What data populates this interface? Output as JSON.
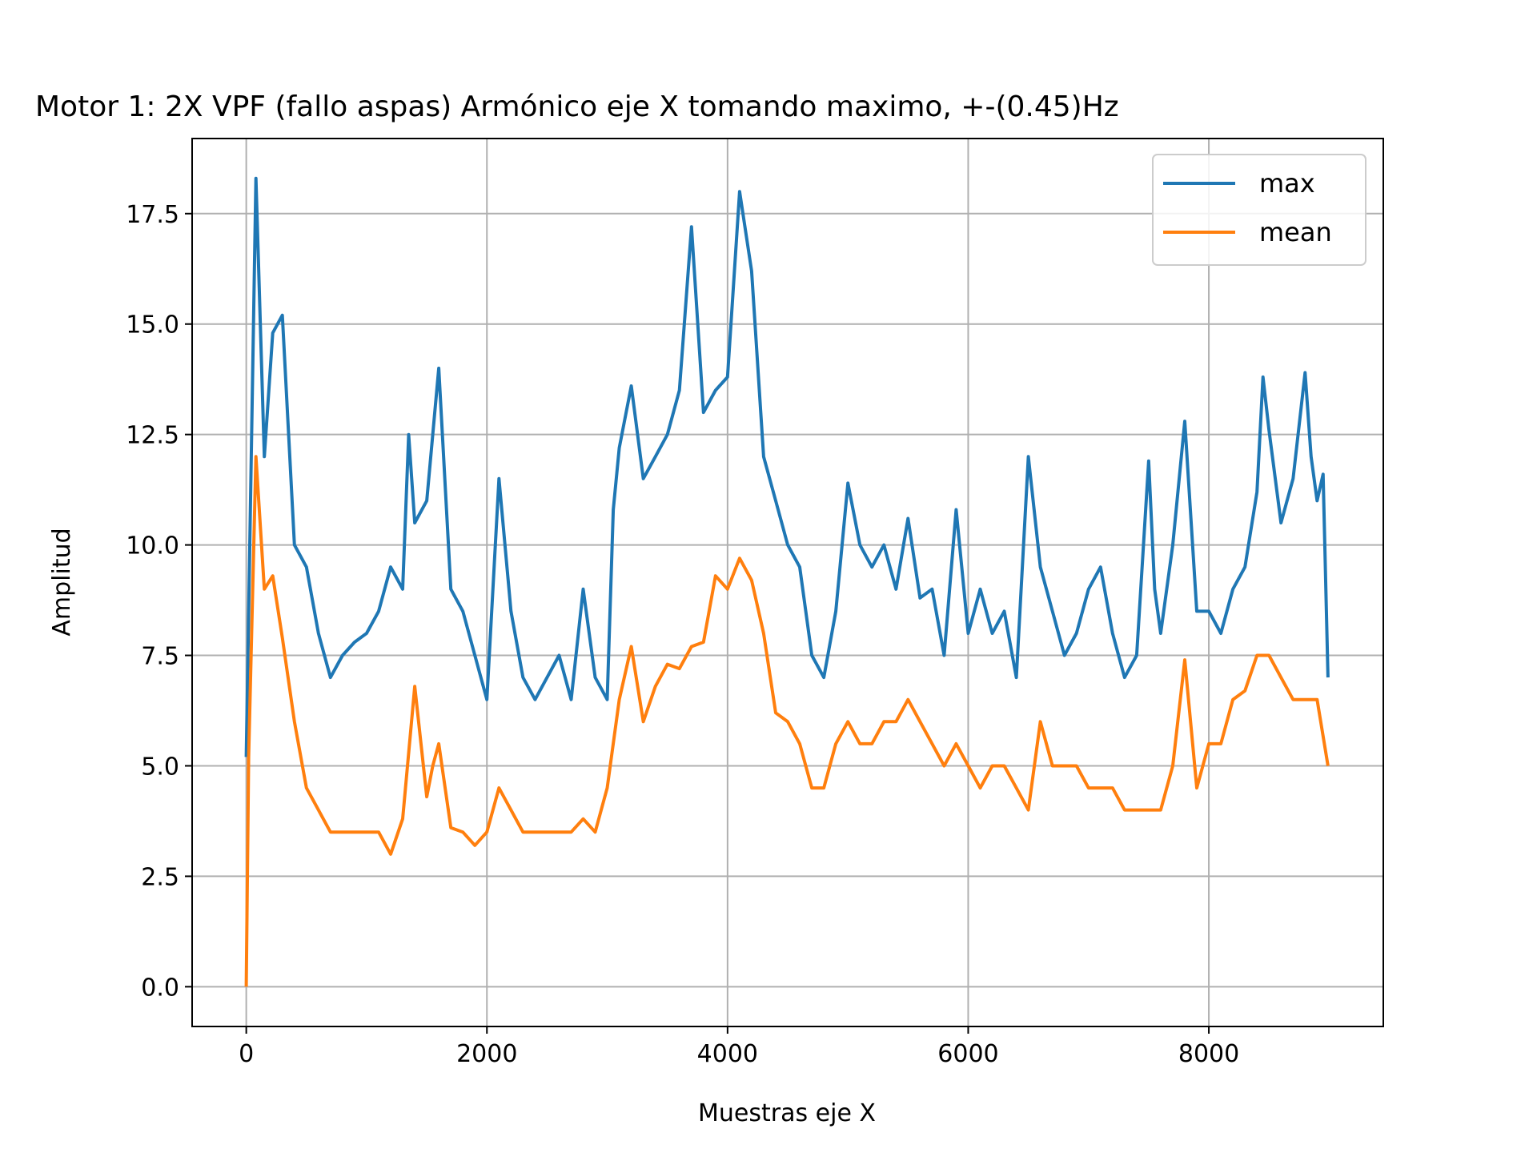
{
  "chart_data": {
    "type": "line",
    "title": "Motor 1: 2X VPF (fallo aspas) Armónico eje X tomando maximo, +-(0.45)Hz",
    "xlabel": "Muestras eje X",
    "ylabel": "Amplitud",
    "xlim": [
      -450,
      9450
    ],
    "ylim": [
      -0.9,
      19.2
    ],
    "xticks": [
      0,
      2000,
      4000,
      6000,
      8000
    ],
    "xtick_labels": [
      "0",
      "2000",
      "4000",
      "6000",
      "8000"
    ],
    "yticks": [
      0.0,
      2.5,
      5.0,
      7.5,
      10.0,
      12.5,
      15.0,
      17.5
    ],
    "ytick_labels": [
      "0.0",
      "2.5",
      "5.0",
      "7.5",
      "10.0",
      "12.5",
      "15.0",
      "17.5"
    ],
    "grid": true,
    "legend_position": "top-right",
    "series": [
      {
        "name": "max",
        "color": "#1f77b4",
        "x": [
          0,
          80,
          150,
          220,
          300,
          400,
          500,
          600,
          700,
          800,
          900,
          1000,
          1100,
          1200,
          1300,
          1350,
          1400,
          1500,
          1550,
          1600,
          1700,
          1800,
          1900,
          2000,
          2100,
          2200,
          2300,
          2400,
          2500,
          2600,
          2700,
          2800,
          2900,
          3000,
          3050,
          3100,
          3200,
          3300,
          3400,
          3500,
          3600,
          3700,
          3800,
          3900,
          4000,
          4100,
          4200,
          4300,
          4400,
          4500,
          4600,
          4700,
          4800,
          4900,
          5000,
          5100,
          5200,
          5300,
          5400,
          5500,
          5600,
          5700,
          5800,
          5900,
          6000,
          6100,
          6200,
          6300,
          6400,
          6500,
          6600,
          6700,
          6800,
          6900,
          7000,
          7100,
          7200,
          7300,
          7400,
          7500,
          7550,
          7600,
          7700,
          7800,
          7900,
          8000,
          8100,
          8200,
          8300,
          8400,
          8450,
          8500,
          8600,
          8700,
          8800,
          8850,
          8900,
          8950,
          8990
        ],
        "values": [
          5.2,
          18.3,
          12.0,
          14.8,
          15.2,
          10.0,
          9.5,
          8.0,
          7.0,
          7.5,
          7.8,
          8.0,
          8.5,
          9.5,
          9.0,
          12.5,
          10.5,
          11.0,
          12.5,
          14.0,
          9.0,
          8.5,
          7.5,
          6.5,
          11.5,
          8.5,
          7.0,
          6.5,
          7.0,
          7.5,
          6.5,
          9.0,
          7.0,
          6.5,
          10.8,
          12.2,
          13.6,
          11.5,
          12.0,
          12.5,
          13.5,
          17.2,
          13.0,
          13.5,
          13.8,
          18.0,
          16.2,
          12.0,
          11.0,
          10.0,
          9.5,
          7.5,
          7.0,
          8.5,
          11.4,
          10.0,
          9.5,
          10.0,
          9.0,
          10.6,
          8.8,
          9.0,
          7.5,
          10.8,
          8.0,
          9.0,
          8.0,
          8.5,
          7.0,
          12.0,
          9.5,
          8.5,
          7.5,
          8.0,
          9.0,
          9.5,
          8.0,
          7.0,
          7.5,
          11.9,
          9.0,
          8.0,
          10.0,
          12.8,
          8.5,
          8.5,
          8.0,
          9.0,
          9.5,
          11.2,
          13.8,
          12.6,
          10.5,
          11.5,
          13.9,
          12.0,
          11.0,
          11.6,
          7.0
        ]
      },
      {
        "name": "mean",
        "color": "#ff7f0e",
        "x": [
          0,
          20,
          80,
          150,
          220,
          300,
          400,
          500,
          600,
          700,
          800,
          900,
          1000,
          1100,
          1200,
          1300,
          1400,
          1500,
          1550,
          1600,
          1700,
          1800,
          1900,
          2000,
          2100,
          2200,
          2300,
          2400,
          2500,
          2600,
          2700,
          2800,
          2900,
          3000,
          3100,
          3200,
          3300,
          3400,
          3500,
          3600,
          3700,
          3800,
          3900,
          4000,
          4100,
          4200,
          4300,
          4400,
          4500,
          4600,
          4700,
          4800,
          4900,
          5000,
          5100,
          5200,
          5300,
          5400,
          5500,
          5600,
          5700,
          5800,
          5900,
          6000,
          6100,
          6200,
          6300,
          6400,
          6500,
          6600,
          6700,
          6800,
          6900,
          7000,
          7100,
          7200,
          7300,
          7400,
          7500,
          7600,
          7700,
          7800,
          7900,
          8000,
          8100,
          8200,
          8300,
          8400,
          8500,
          8600,
          8700,
          8800,
          8900,
          8990
        ],
        "values": [
          0.0,
          5.2,
          12.0,
          9.0,
          9.3,
          7.9,
          6.0,
          4.5,
          4.0,
          3.5,
          3.5,
          3.5,
          3.5,
          3.5,
          3.0,
          3.8,
          6.8,
          4.3,
          5.0,
          5.5,
          3.6,
          3.5,
          3.2,
          3.5,
          4.5,
          4.0,
          3.5,
          3.5,
          3.5,
          3.5,
          3.5,
          3.8,
          3.5,
          4.5,
          6.5,
          7.7,
          6.0,
          6.8,
          7.3,
          7.2,
          7.7,
          7.8,
          9.3,
          9.0,
          9.7,
          9.2,
          8.0,
          6.2,
          6.0,
          5.5,
          4.5,
          4.5,
          5.5,
          6.0,
          5.5,
          5.5,
          6.0,
          6.0,
          6.5,
          6.0,
          5.5,
          5.0,
          5.5,
          5.0,
          4.5,
          5.0,
          5.0,
          4.5,
          4.0,
          6.0,
          5.0,
          5.0,
          5.0,
          4.5,
          4.5,
          4.5,
          4.0,
          4.0,
          4.0,
          4.0,
          5.0,
          7.4,
          4.5,
          5.5,
          5.5,
          6.5,
          6.7,
          7.5,
          7.5,
          7.0,
          6.5,
          6.5,
          6.5,
          5.0
        ]
      }
    ]
  }
}
